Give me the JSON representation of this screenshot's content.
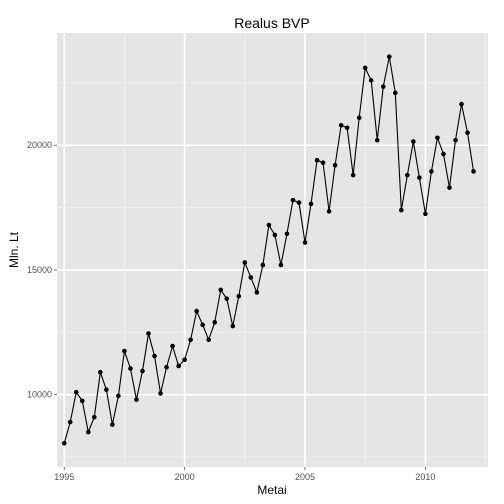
{
  "chart_data": {
    "type": "line",
    "title": "Realus BVP",
    "xlabel": "Metai",
    "ylabel": "Mln. Lt",
    "xlim": [
      1994.7,
      2012.6
    ],
    "ylim": [
      7100,
      24500
    ],
    "x_ticks": [
      1995,
      2000,
      2005,
      2010
    ],
    "y_ticks": [
      10000,
      15000,
      20000
    ],
    "y_tick_labels": [
      "10000",
      "15000",
      "20000"
    ],
    "grid": true,
    "legend": "none",
    "colors": {
      "panel": "#e5e5e5",
      "grid_major": "#ffffff",
      "grid_minor": "#f2f2f2",
      "line": "#000000"
    },
    "series": [
      {
        "x": [
          1995.0,
          1995.25,
          1995.5,
          1995.75,
          1996.0,
          1996.25,
          1996.5,
          1996.75,
          1997.0,
          1997.25,
          1997.5,
          1997.75,
          1998.0,
          1998.25,
          1998.5,
          1998.75,
          1999.0,
          1999.25,
          1999.5,
          1999.75,
          2000.0,
          2000.25,
          2000.5,
          2000.75,
          2001.0,
          2001.25,
          2001.5,
          2001.75,
          2002.0,
          2002.25,
          2002.5,
          2002.75,
          2003.0,
          2003.25,
          2003.5,
          2003.75,
          2004.0,
          2004.25,
          2004.5,
          2004.75,
          2005.0,
          2005.25,
          2005.5,
          2005.75,
          2006.0,
          2006.25,
          2006.5,
          2006.75,
          2007.0,
          2007.25,
          2007.5,
          2007.75,
          2008.0,
          2008.25,
          2008.5,
          2008.75,
          2009.0,
          2009.25,
          2009.5,
          2009.75,
          2010.0,
          2010.25,
          2010.5,
          2010.75,
          2011.0,
          2011.25,
          2011.5,
          2011.75,
          2012.0
        ],
        "values": [
          8050,
          8900,
          10100,
          9750,
          8500,
          9100,
          10900,
          10200,
          8800,
          9950,
          11750,
          11050,
          9800,
          10950,
          12450,
          11550,
          10050,
          11100,
          11950,
          11150,
          11400,
          12200,
          13350,
          12800,
          12200,
          12900,
          14200,
          13850,
          12750,
          13950,
          15300,
          14700,
          14100,
          15200,
          16800,
          16400,
          15200,
          16450,
          17800,
          17700,
          16100,
          17650,
          19400,
          19300,
          17350,
          19200,
          20800,
          20700,
          18800,
          21100,
          23100,
          22600,
          20200,
          22350,
          23550,
          22100,
          17400,
          18800,
          20150,
          18700,
          17250,
          18950,
          20300,
          19650,
          18300,
          20200,
          21650,
          20500,
          18950
        ]
      }
    ]
  }
}
